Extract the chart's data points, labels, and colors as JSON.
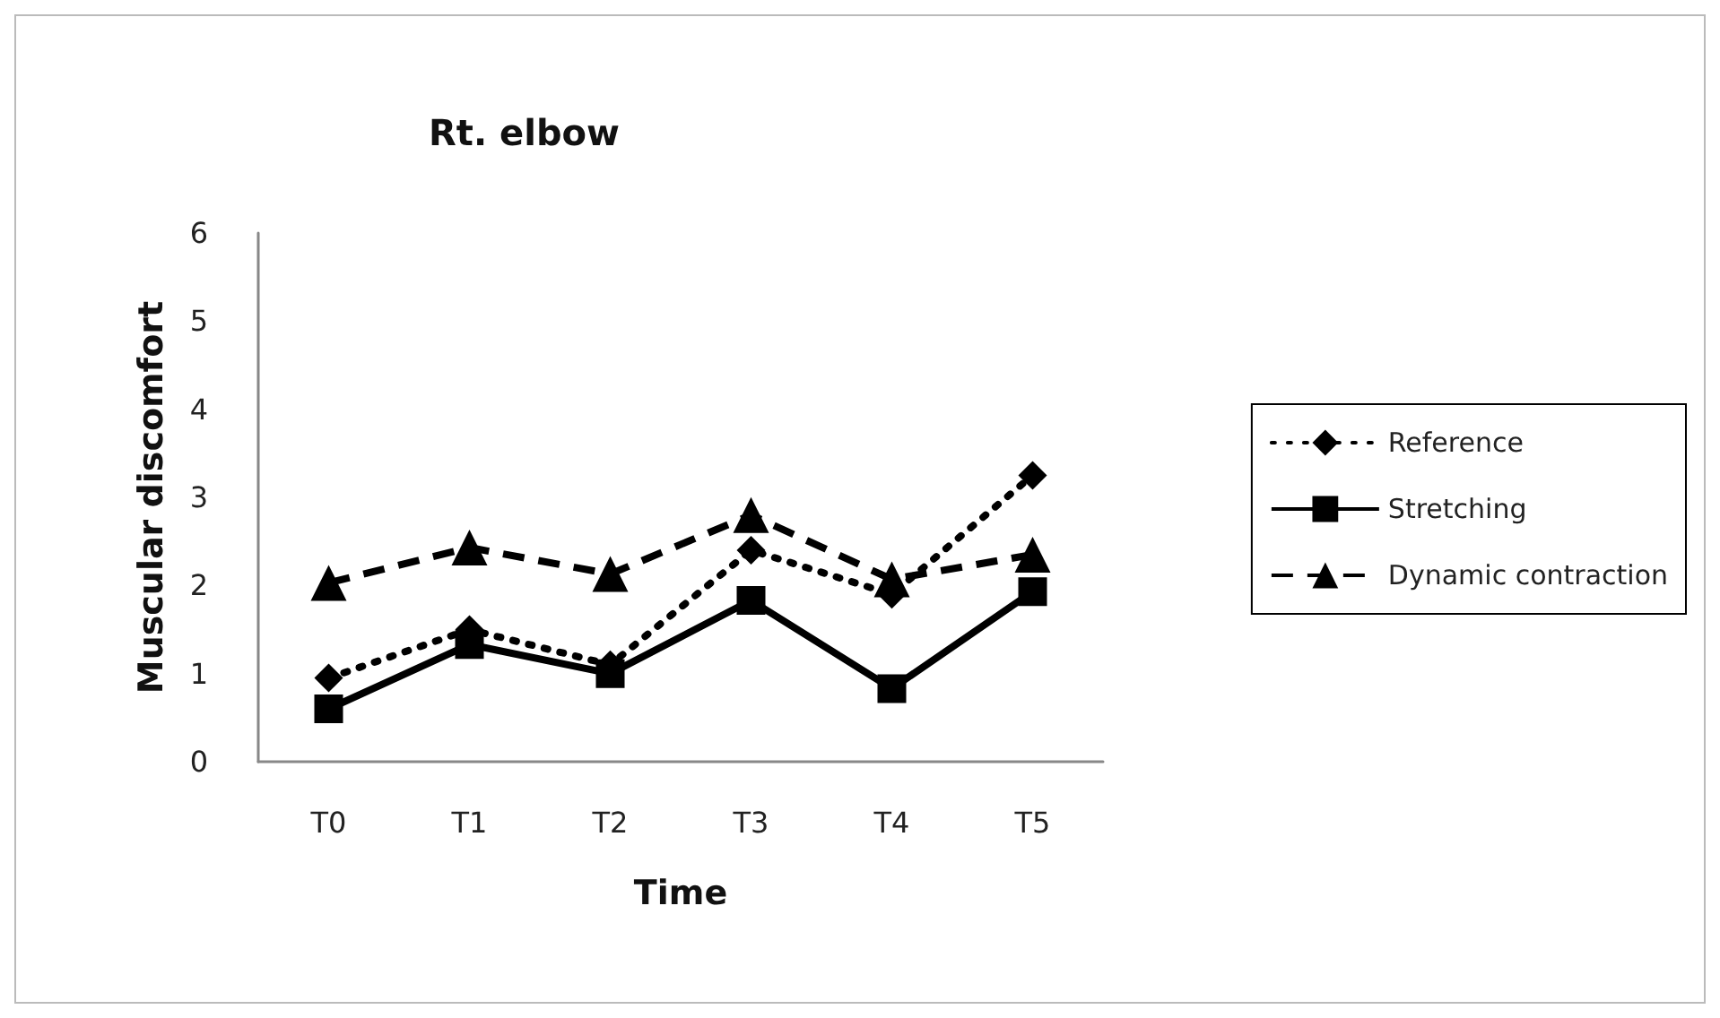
{
  "chart_data": {
    "type": "line",
    "title": "Rt. elbow",
    "xlabel": "Time",
    "ylabel": "Muscular discomfort",
    "categories": [
      "T0",
      "T1",
      "T2",
      "T3",
      "T4",
      "T5"
    ],
    "ylim": [
      0,
      6
    ],
    "yticks": [
      0,
      1,
      2,
      3,
      4,
      5,
      6
    ],
    "grid": false,
    "legend": "right",
    "series": [
      {
        "name": "Reference",
        "color": "#000000",
        "marker": "diamond",
        "line_style": "dotted",
        "values": [
          0.95,
          1.5,
          1.1,
          2.4,
          1.9,
          3.25
        ]
      },
      {
        "name": "Stretching",
        "color": "#000000",
        "marker": "square",
        "line_style": "solid",
        "values": [
          0.6,
          1.33,
          1.0,
          1.83,
          0.83,
          1.93
        ]
      },
      {
        "name": "Dynamic contraction",
        "color": "#000000",
        "marker": "triangle",
        "line_style": "dashed",
        "values": [
          2.03,
          2.43,
          2.13,
          2.8,
          2.07,
          2.35
        ]
      }
    ]
  }
}
